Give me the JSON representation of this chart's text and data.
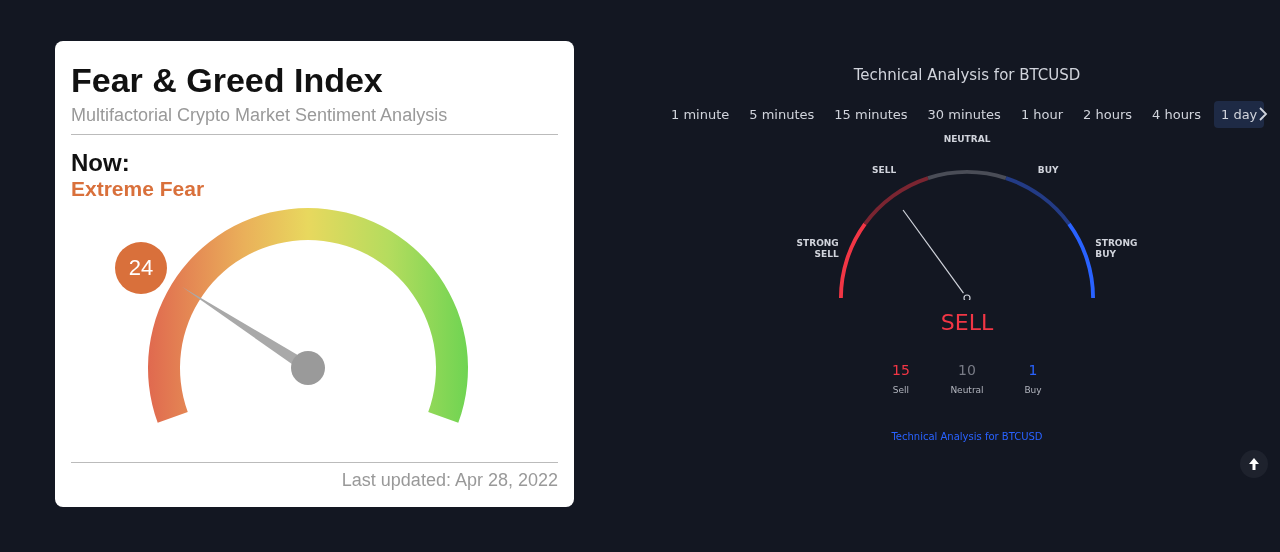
{
  "chart_data": [
    {
      "type": "other",
      "title": "Fear & Greed Index",
      "subtitle": "Multifactorial Crypto Market Sentiment Analysis",
      "values": [
        24
      ],
      "data_labels": true,
      "annotations": [
        "Now:",
        "Extreme Fear",
        "Last updated: Apr 28, 2022"
      ]
    },
    {
      "type": "donut",
      "title": "Technical Analysis for BTCUSD",
      "categories": [
        "STRONG SELL",
        "SELL",
        "NEUTRAL",
        "BUY",
        "STRONG BUY"
      ],
      "values": [
        20,
        20,
        20,
        20,
        20
      ],
      "colors": [
        "#f23645",
        "#7a2531",
        "#4a4d57",
        "#233b85",
        "#2962ff"
      ],
      "needle": "SELL",
      "legend": false,
      "annotations": [
        "1 minute",
        "5 minutes",
        "15 minutes",
        "30 minutes",
        "1 hour",
        "2 hours",
        "4 hours",
        "1 day",
        "Technical Analysis for BTCUSD"
      ]
    },
    {
      "type": "other",
      "title": "SELL",
      "categories": [
        "Sell",
        "Neutral",
        "Buy"
      ],
      "values": [
        15,
        10,
        1
      ],
      "data_labels": true,
      "colors": [
        "#f23645",
        "#787b86",
        "#2962ff"
      ]
    }
  ]
}
